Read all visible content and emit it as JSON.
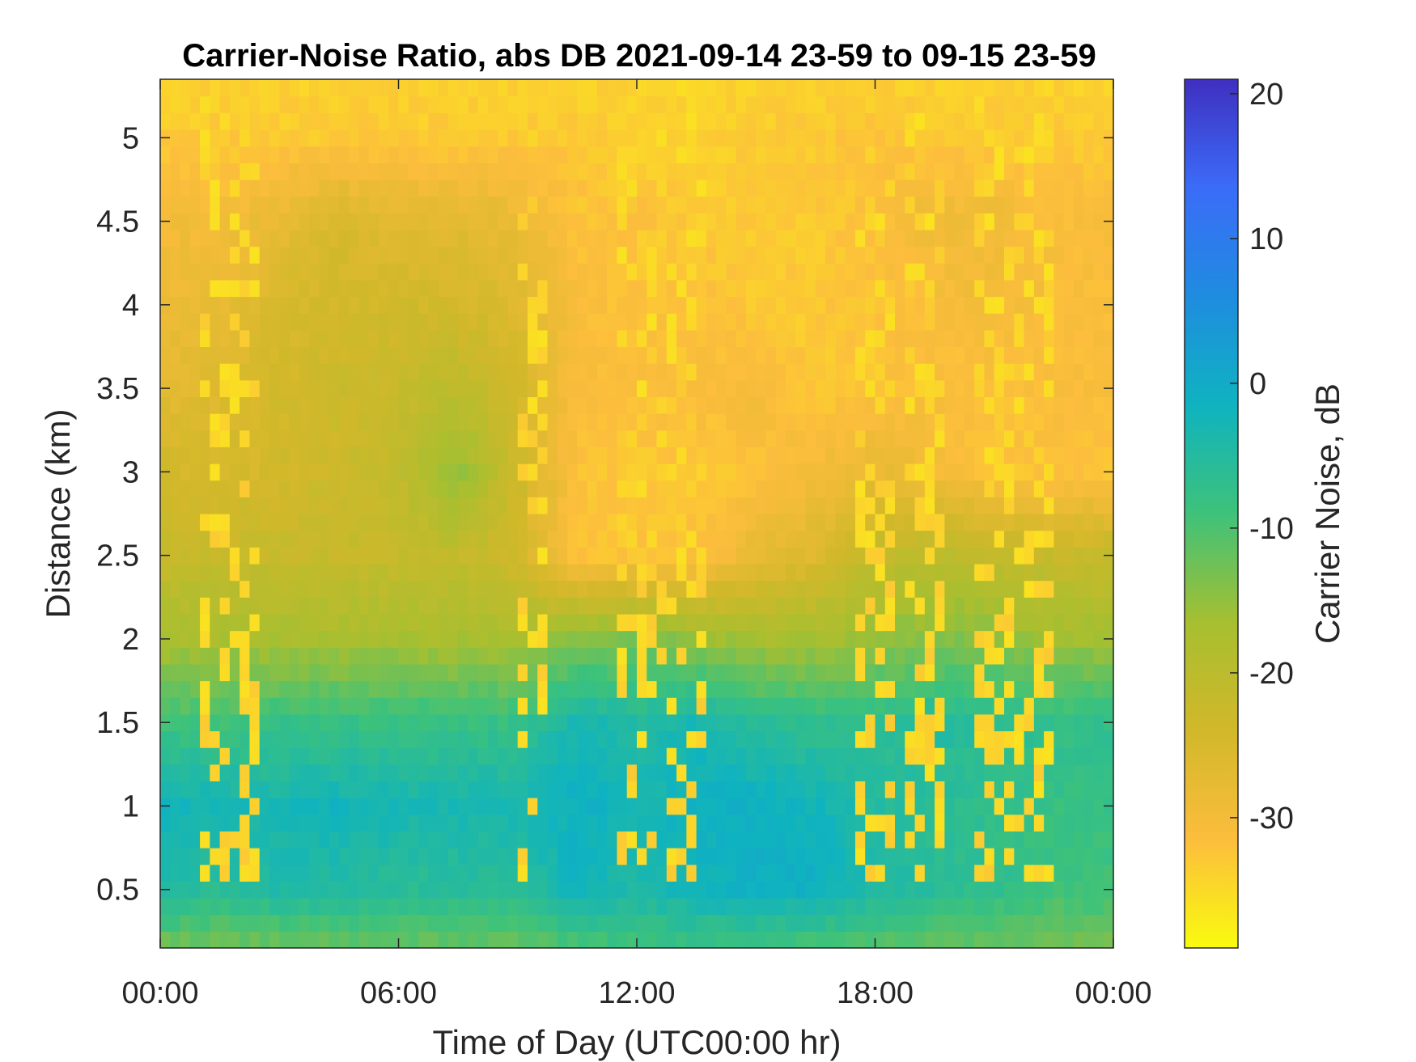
{
  "chart_data": {
    "type": "heatmap",
    "title": "Carrier-Noise Ratio, abs DB 2021-09-14 23-59 to 09-15 23-59",
    "xlabel": "Time of Day (UTC00:00 hr)",
    "ylabel": "Distance (km)",
    "colorbar_label": "Carrier Noise, dB",
    "x_ticks": [
      {
        "value": 0,
        "label": "00:00"
      },
      {
        "value": 6,
        "label": "06:00"
      },
      {
        "value": 12,
        "label": "12:00"
      },
      {
        "value": 18,
        "label": "18:00"
      },
      {
        "value": 24,
        "label": "00:00"
      }
    ],
    "y_ticks": [
      {
        "value": 0.5,
        "label": "0.5"
      },
      {
        "value": 1,
        "label": "1"
      },
      {
        "value": 1.5,
        "label": "1.5"
      },
      {
        "value": 2,
        "label": "2"
      },
      {
        "value": 2.5,
        "label": "2.5"
      },
      {
        "value": 3,
        "label": "3"
      },
      {
        "value": 3.5,
        "label": "3.5"
      },
      {
        "value": 4,
        "label": "4"
      },
      {
        "value": 4.5,
        "label": "4.5"
      },
      {
        "value": 5,
        "label": "5"
      }
    ],
    "colorbar_ticks": [
      {
        "value": 20,
        "label": "20"
      },
      {
        "value": 10,
        "label": "10"
      },
      {
        "value": 0,
        "label": "0"
      },
      {
        "value": -10,
        "label": "-10"
      },
      {
        "value": -20,
        "label": "-20"
      },
      {
        "value": -30,
        "label": "-30"
      }
    ],
    "xlim": [
      0,
      24
    ],
    "ylim": [
      0.15,
      5.35
    ],
    "clim": [
      -39,
      21
    ],
    "colormap": "parula-reversed",
    "colormap_stops": [
      "#f9fb0e",
      "#fcbd3d",
      "#d2b82a",
      "#a6bf30",
      "#3ec27a",
      "#0fb3c0",
      "#1f8ce0",
      "#3b6cf8",
      "#3f2fc0"
    ],
    "value_pattern": {
      "x_step_hr": 0.25,
      "y_step_km": 0.1,
      "x": [
        0,
        1.5,
        3,
        4.5,
        6,
        7.5,
        9,
        10.5,
        12,
        13.5,
        15,
        16.5,
        18,
        19.5,
        21,
        22.5,
        24
      ],
      "y": [
        0.15,
        0.5,
        1,
        1.5,
        2,
        2.5,
        3,
        3.5,
        4,
        4.5,
        5,
        5.35
      ],
      "z": [
        [
          -13,
          -13,
          -13,
          -12,
          -12,
          -12,
          -12,
          -10,
          -9,
          -9,
          -9,
          -10,
          -11,
          -12,
          -12,
          -13,
          -13
        ],
        [
          -4,
          -6,
          -4,
          -5,
          -6,
          -6,
          -6,
          -2,
          -4,
          -2,
          -1,
          -1,
          -4,
          -6,
          -7,
          -9,
          -9
        ],
        [
          -2,
          -3,
          -3,
          -2,
          -3,
          -3,
          -3,
          -1,
          -3,
          -1,
          -1,
          -2,
          -5,
          -6,
          -7,
          -8,
          -8
        ],
        [
          -9,
          -9,
          -8,
          -8,
          -8,
          -8,
          -8,
          -3,
          -5,
          -3,
          -6,
          -7,
          -7,
          -5,
          -6,
          -7,
          -7
        ],
        [
          -17,
          -17,
          -17,
          -17,
          -17,
          -17,
          -17,
          -14,
          -13,
          -15,
          -17,
          -17,
          -15,
          -14,
          -14,
          -16,
          -16
        ],
        [
          -22,
          -22,
          -22,
          -22,
          -22,
          -21,
          -24,
          -32,
          -32,
          -32,
          -28,
          -26,
          -21,
          -20,
          -21,
          -22,
          -22
        ],
        [
          -24,
          -25,
          -24,
          -23,
          -21,
          -15,
          -23,
          -32,
          -33,
          -33,
          -32,
          -30,
          -28,
          -30,
          -32,
          -32,
          -32
        ],
        [
          -27,
          -26,
          -24,
          -23,
          -22,
          -20,
          -24,
          -31,
          -31,
          -31,
          -30,
          -33,
          -32,
          -31,
          -32,
          -31,
          -31
        ],
        [
          -29,
          -28,
          -25,
          -24,
          -24,
          -24,
          -26,
          -31,
          -32,
          -32,
          -33,
          -33,
          -32,
          -31,
          -30,
          -31,
          -31
        ],
        [
          -30,
          -30,
          -28,
          -25,
          -27,
          -27,
          -28,
          -32,
          -32,
          -33,
          -33,
          -33,
          -32,
          -29,
          -29,
          -31,
          -31
        ],
        [
          -33,
          -33,
          -33,
          -33,
          -33,
          -33,
          -33,
          -33,
          -34,
          -34,
          -33,
          -33,
          -32,
          -33,
          -33,
          -33,
          -33
        ],
        [
          -34,
          -34,
          -34,
          -34,
          -34,
          -34,
          -34,
          -34,
          -34,
          -34,
          -34,
          -34,
          -34,
          -34,
          -34,
          -34,
          -34
        ]
      ]
    },
    "low_signal_columns_hr": [
      [
        0.9,
        2.3
      ],
      [
        8.8,
        9.7
      ],
      [
        11.4,
        13.5
      ],
      [
        17.3,
        18.3
      ],
      [
        18.6,
        19.6
      ],
      [
        20.5,
        22.3
      ]
    ],
    "grid": false
  }
}
